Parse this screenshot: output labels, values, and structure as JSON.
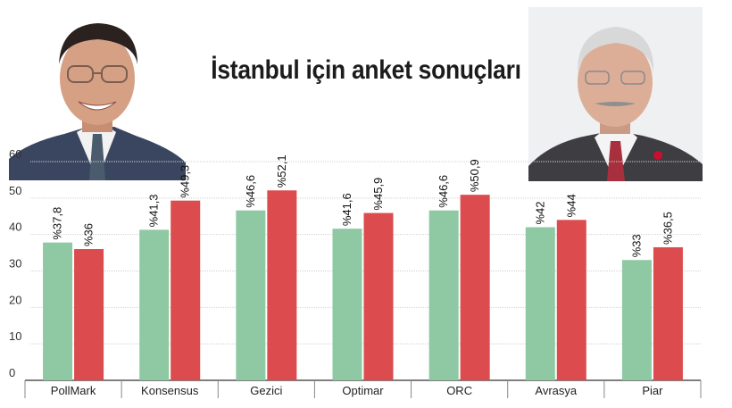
{
  "chart_data": {
    "type": "bar",
    "title": "İstanbul için anket sonuçları",
    "categories": [
      "PollMark",
      "Konsensus",
      "Gezici",
      "Optimar",
      "ORC",
      "Avrasya",
      "Piar"
    ],
    "series": [
      {
        "color": "#8ec9a3",
        "values": [
          37.8,
          41.3,
          46.6,
          41.6,
          46.6,
          42,
          33
        ]
      },
      {
        "color": "#dc4b4e",
        "values": [
          36,
          49.3,
          52.1,
          45.9,
          50.9,
          44,
          36.5
        ]
      }
    ],
    "data_labels": [
      [
        "%37,8",
        "%41,3",
        "%46,6",
        "%41,6",
        "%46,6",
        "%42",
        "%33"
      ],
      [
        "%36",
        "%49,3",
        "%52,1",
        "%45,9",
        "%50,9",
        "%44",
        "%36,5"
      ]
    ],
    "y_ticks": [
      "0",
      "10",
      "20",
      "30",
      "40",
      "50",
      "60"
    ],
    "ylim": [
      0,
      60
    ],
    "grid": true,
    "legend": "none",
    "xlabel": "",
    "ylabel": ""
  },
  "images": {
    "left_portrait": "portrait-photo",
    "right_portrait": "portrait-photo"
  }
}
